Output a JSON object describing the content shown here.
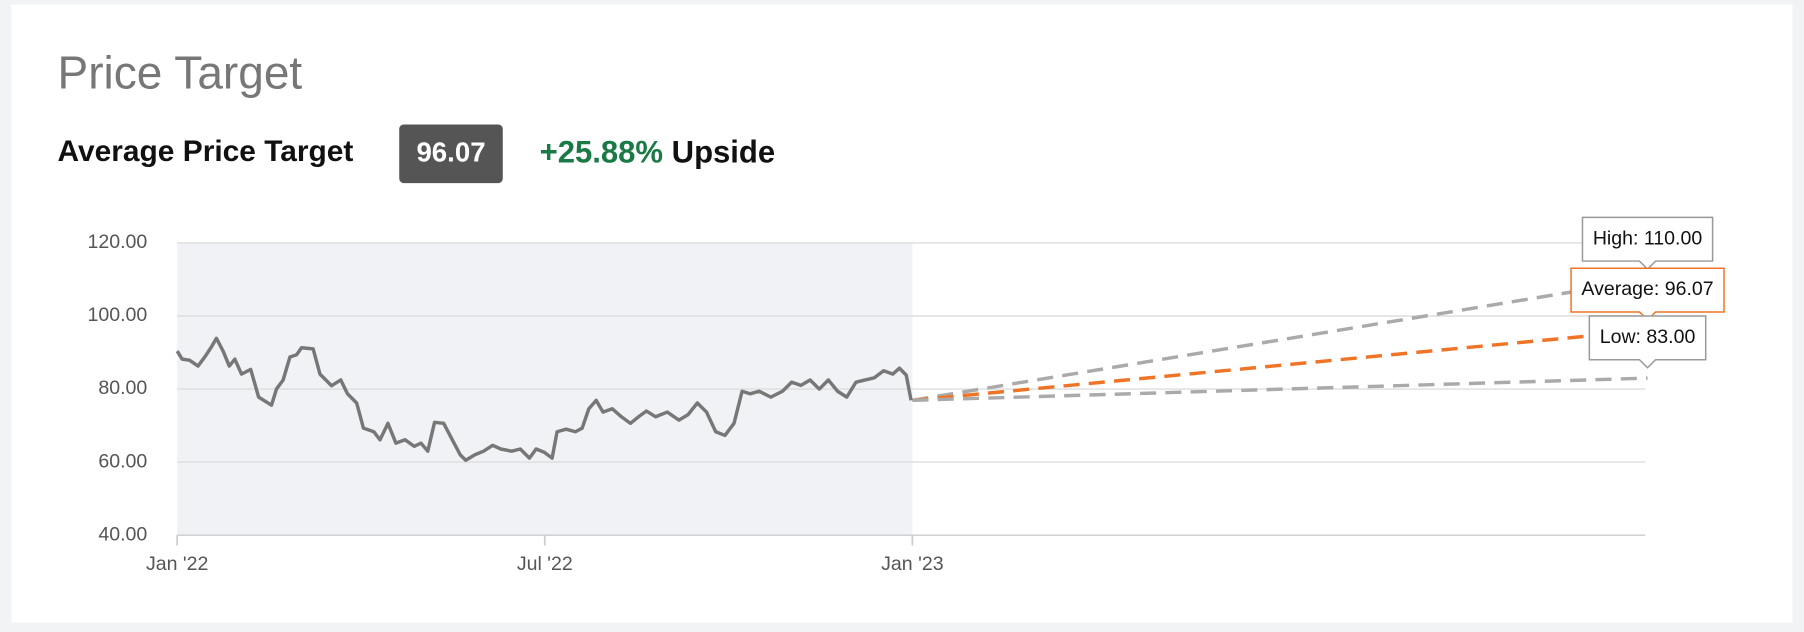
{
  "header": {
    "title": "Price Target",
    "average_label": "Average Price Target",
    "average_value": "96.07",
    "upside_percent": "+25.88%",
    "upside_word": "Upside"
  },
  "chart_data": {
    "type": "line",
    "xlim": [
      0,
      24
    ],
    "ylim": [
      40,
      120
    ],
    "xticks": [
      {
        "value": 0,
        "label": "Jan '22"
      },
      {
        "value": 6,
        "label": "Jul '22"
      },
      {
        "value": 12,
        "label": "Jan '23"
      }
    ],
    "yticks": [
      {
        "value": 40,
        "label": "40.00"
      },
      {
        "value": 60,
        "label": "60.00"
      },
      {
        "value": 80,
        "label": "80.00"
      },
      {
        "value": 100,
        "label": "100.00"
      },
      {
        "value": 120,
        "label": "120.00"
      }
    ],
    "grid": true,
    "history": {
      "color": "#777777",
      "x": [
        0,
        0.08,
        0.2,
        0.34,
        0.45,
        0.55,
        0.64,
        0.75,
        0.85,
        0.94,
        1.05,
        1.2,
        1.33,
        1.54,
        1.62,
        1.73,
        1.84,
        1.95,
        2.03,
        2.22,
        2.33,
        2.52,
        2.67,
        2.78,
        2.93,
        3.04,
        3.21,
        3.31,
        3.44,
        3.57,
        3.72,
        3.87,
        3.98,
        4.09,
        4.2,
        4.35,
        4.47,
        4.62,
        4.71,
        4.86,
        5.0,
        5.15,
        5.28,
        5.46,
        5.6,
        5.75,
        5.86,
        5.99,
        6.12,
        6.2,
        6.35,
        6.5,
        6.61,
        6.72,
        6.84,
        6.95,
        7.1,
        7.25,
        7.4,
        7.53,
        7.66,
        7.81,
        8.0,
        8.19,
        8.34,
        8.49,
        8.64,
        8.79,
        8.94,
        9.09,
        9.22,
        9.35,
        9.5,
        9.69,
        9.88,
        10.03,
        10.18,
        10.33,
        10.48,
        10.63,
        10.78,
        10.93,
        11.08,
        11.23,
        11.38,
        11.53,
        11.68,
        11.79,
        11.9,
        11.98
      ],
      "values": [
        90.4,
        88.2,
        87.9,
        86.3,
        88.8,
        91.3,
        93.9,
        90.4,
        86.3,
        88.2,
        84.1,
        85.4,
        77.8,
        75.6,
        80,
        82.5,
        88.8,
        89.4,
        91.3,
        91,
        84.1,
        80.9,
        82.5,
        78.7,
        76.2,
        69.3,
        68.3,
        66.1,
        70.6,
        65.2,
        66.1,
        64.3,
        65.2,
        63,
        70.9,
        70.6,
        66.8,
        62,
        60.5,
        62,
        63,
        64.6,
        63.6,
        63,
        63.6,
        61.1,
        63.6,
        62.7,
        61.1,
        68.3,
        69,
        68.3,
        69.3,
        74.6,
        76.9,
        73.7,
        74.6,
        72.4,
        70.6,
        72.4,
        74,
        72.4,
        73.7,
        71.5,
        73,
        76.2,
        73.7,
        68.3,
        67.3,
        70.6,
        79.4,
        78.7,
        79.4,
        77.8,
        79.4,
        81.9,
        81,
        82.5,
        80,
        82.5,
        79.4,
        77.8,
        81.9,
        82.5,
        83.1,
        85,
        84.1,
        85.7,
        83.8,
        76.9
      ]
    },
    "series": [
      {
        "name": "High: 110.00",
        "color": "#aaaaaa",
        "x": [
          12,
          24
        ],
        "values": [
          76.9,
          110
        ]
      },
      {
        "name": "Average: 96.07",
        "color": "#f07427",
        "x": [
          12,
          24
        ],
        "values": [
          76.9,
          96.07
        ]
      },
      {
        "name": "Low: 83.00",
        "color": "#aaaaaa",
        "x": [
          12,
          24
        ],
        "values": [
          76.9,
          83
        ]
      }
    ]
  }
}
